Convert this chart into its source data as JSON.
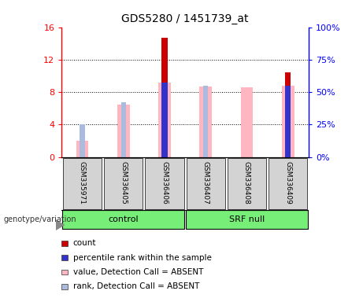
{
  "title": "GDS5280 / 1451739_at",
  "samples": [
    "GSM335971",
    "GSM336405",
    "GSM336406",
    "GSM336407",
    "GSM336408",
    "GSM336409"
  ],
  "count_values": [
    null,
    null,
    14.7,
    null,
    null,
    10.4
  ],
  "percentile_rank_values": [
    null,
    null,
    9.2,
    null,
    null,
    8.8
  ],
  "absent_value_values": [
    2.0,
    6.5,
    9.2,
    8.7,
    8.6,
    8.8
  ],
  "absent_rank_values": [
    4.0,
    6.8,
    null,
    8.8,
    null,
    null
  ],
  "ylim_left": [
    0,
    16
  ],
  "ylim_right": [
    0,
    100
  ],
  "yticks_left": [
    0,
    4,
    8,
    12,
    16
  ],
  "yticks_right": [
    0,
    25,
    50,
    75,
    100
  ],
  "ytick_labels_right": [
    "0%",
    "25%",
    "50%",
    "75%",
    "100%"
  ],
  "count_color": "#CC0000",
  "percentile_color": "#3333CC",
  "absent_value_color": "#FFB6C1",
  "absent_rank_color": "#AABBDD",
  "bg_color": "#FFFFFF",
  "label_bg_color": "#D3D3D3",
  "group_bg_color": "#77EE77",
  "legend_items": [
    {
      "label": "count",
      "color": "#CC0000"
    },
    {
      "label": "percentile rank within the sample",
      "color": "#3333CC"
    },
    {
      "label": "value, Detection Call = ABSENT",
      "color": "#FFB6C1"
    },
    {
      "label": "rank, Detection Call = ABSENT",
      "color": "#AABBDD"
    }
  ],
  "genotype_label": "genotype/variation"
}
